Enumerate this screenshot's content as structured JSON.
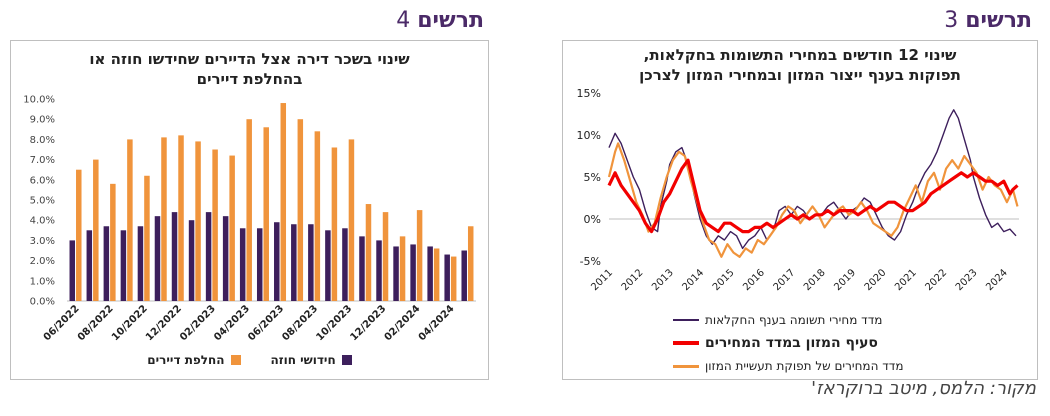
{
  "fig3": {
    "word": "תרשים",
    "number": "3"
  },
  "fig4": {
    "word": "תרשים",
    "number": "4"
  },
  "source": "מקור: הלמס, מיטב ברוקראז'",
  "colors": {
    "title": "#4b2a68",
    "purple": "#3d1f5c",
    "orange": "#f0943c",
    "red": "#f20000"
  },
  "chart_data": [
    {
      "type": "line",
      "title_line1": "שינוי 12 חודשים במחירי התשומות בחקלאות,",
      "title_line2": "תפוקות בענף ייצור המזון ובמחירי המזון לצרכן",
      "yticks": [
        "15%",
        "10%",
        "5%",
        "0%",
        "-5%"
      ],
      "ylim": [
        -5,
        15
      ],
      "xticks": [
        "2011",
        "2012",
        "2013",
        "2014",
        "2015",
        "2016",
        "2017",
        "2018",
        "2019",
        "2020",
        "2021",
        "2022",
        "2023",
        "2024"
      ],
      "xlim": [
        2011,
        2024.5
      ],
      "series": [
        {
          "name": "מדד מחירי תשומה בענף החקלאות",
          "color": "#3d1f5c",
          "points": [
            [
              2011.0,
              8.5
            ],
            [
              2011.2,
              10.2
            ],
            [
              2011.4,
              9.0
            ],
            [
              2011.6,
              7.0
            ],
            [
              2011.8,
              5.0
            ],
            [
              2012.0,
              3.5
            ],
            [
              2012.2,
              1.0
            ],
            [
              2012.4,
              -1.0
            ],
            [
              2012.6,
              -1.5
            ],
            [
              2012.7,
              1.5
            ],
            [
              2012.9,
              4.5
            ],
            [
              2013.0,
              6.5
            ],
            [
              2013.2,
              8.0
            ],
            [
              2013.4,
              8.5
            ],
            [
              2013.6,
              6.5
            ],
            [
              2013.8,
              3.0
            ],
            [
              2014.0,
              0.0
            ],
            [
              2014.2,
              -2.0
            ],
            [
              2014.4,
              -3.0
            ],
            [
              2014.6,
              -2.0
            ],
            [
              2014.8,
              -2.5
            ],
            [
              2015.0,
              -1.5
            ],
            [
              2015.2,
              -2.0
            ],
            [
              2015.4,
              -3.5
            ],
            [
              2015.6,
              -2.5
            ],
            [
              2015.8,
              -2.0
            ],
            [
              2016.0,
              -1.0
            ],
            [
              2016.2,
              -2.5
            ],
            [
              2016.4,
              -1.5
            ],
            [
              2016.6,
              1.0
            ],
            [
              2016.8,
              1.5
            ],
            [
              2017.0,
              0.5
            ],
            [
              2017.2,
              1.5
            ],
            [
              2017.4,
              1.0
            ],
            [
              2017.6,
              0.0
            ],
            [
              2017.8,
              0.5
            ],
            [
              2018.0,
              0.5
            ],
            [
              2018.2,
              1.5
            ],
            [
              2018.4,
              2.0
            ],
            [
              2018.6,
              1.0
            ],
            [
              2018.8,
              0.0
            ],
            [
              2019.0,
              1.0
            ],
            [
              2019.2,
              1.5
            ],
            [
              2019.4,
              2.5
            ],
            [
              2019.6,
              2.0
            ],
            [
              2019.8,
              0.5
            ],
            [
              2020.0,
              -1.0
            ],
            [
              2020.2,
              -2.0
            ],
            [
              2020.4,
              -2.5
            ],
            [
              2020.6,
              -1.5
            ],
            [
              2020.8,
              0.5
            ],
            [
              2021.0,
              2.0
            ],
            [
              2021.2,
              4.0
            ],
            [
              2021.4,
              5.5
            ],
            [
              2021.6,
              6.5
            ],
            [
              2021.8,
              8.0
            ],
            [
              2022.0,
              10.0
            ],
            [
              2022.2,
              12.0
            ],
            [
              2022.35,
              13.0
            ],
            [
              2022.5,
              12.0
            ],
            [
              2022.7,
              9.5
            ],
            [
              2022.9,
              7.0
            ],
            [
              2023.0,
              5.0
            ],
            [
              2023.2,
              2.5
            ],
            [
              2023.4,
              0.5
            ],
            [
              2023.6,
              -1.0
            ],
            [
              2023.8,
              -0.5
            ],
            [
              2024.0,
              -1.5
            ],
            [
              2024.2,
              -1.2
            ],
            [
              2024.4,
              -2.0
            ]
          ]
        },
        {
          "name": "סעיף המזון במדד המחירים",
          "color": "#f20000",
          "points": [
            [
              2011.0,
              4.0
            ],
            [
              2011.2,
              5.5
            ],
            [
              2011.4,
              4.0
            ],
            [
              2011.6,
              3.0
            ],
            [
              2011.8,
              2.0
            ],
            [
              2012.0,
              1.0
            ],
            [
              2012.2,
              -0.5
            ],
            [
              2012.4,
              -1.5
            ],
            [
              2012.6,
              0.0
            ],
            [
              2012.8,
              2.0
            ],
            [
              2013.0,
              3.0
            ],
            [
              2013.2,
              4.5
            ],
            [
              2013.4,
              6.0
            ],
            [
              2013.6,
              7.0
            ],
            [
              2013.8,
              4.0
            ],
            [
              2014.0,
              1.0
            ],
            [
              2014.2,
              -0.5
            ],
            [
              2014.4,
              -1.0
            ],
            [
              2014.6,
              -1.5
            ],
            [
              2014.8,
              -0.5
            ],
            [
              2015.0,
              -0.5
            ],
            [
              2015.2,
              -1.0
            ],
            [
              2015.4,
              -1.5
            ],
            [
              2015.6,
              -1.5
            ],
            [
              2015.8,
              -1.0
            ],
            [
              2016.0,
              -1.0
            ],
            [
              2016.2,
              -0.5
            ],
            [
              2016.4,
              -1.0
            ],
            [
              2016.6,
              -0.5
            ],
            [
              2016.8,
              0.0
            ],
            [
              2017.0,
              0.5
            ],
            [
              2017.2,
              0.0
            ],
            [
              2017.4,
              0.5
            ],
            [
              2017.6,
              0.0
            ],
            [
              2017.8,
              0.5
            ],
            [
              2018.0,
              0.5
            ],
            [
              2018.2,
              1.0
            ],
            [
              2018.4,
              0.5
            ],
            [
              2018.6,
              1.0
            ],
            [
              2018.8,
              1.0
            ],
            [
              2019.0,
              1.0
            ],
            [
              2019.2,
              0.5
            ],
            [
              2019.4,
              1.0
            ],
            [
              2019.6,
              1.5
            ],
            [
              2019.8,
              1.0
            ],
            [
              2020.0,
              1.5
            ],
            [
              2020.2,
              2.0
            ],
            [
              2020.4,
              2.0
            ],
            [
              2020.6,
              1.5
            ],
            [
              2020.8,
              1.0
            ],
            [
              2021.0,
              1.0
            ],
            [
              2021.2,
              1.5
            ],
            [
              2021.4,
              2.0
            ],
            [
              2021.6,
              3.0
            ],
            [
              2021.8,
              3.5
            ],
            [
              2022.0,
              4.0
            ],
            [
              2022.2,
              4.5
            ],
            [
              2022.4,
              5.0
            ],
            [
              2022.6,
              5.5
            ],
            [
              2022.8,
              5.0
            ],
            [
              2023.0,
              5.5
            ],
            [
              2023.2,
              5.0
            ],
            [
              2023.4,
              4.5
            ],
            [
              2023.6,
              4.5
            ],
            [
              2023.8,
              4.0
            ],
            [
              2024.0,
              4.5
            ],
            [
              2024.2,
              3.0
            ],
            [
              2024.3,
              3.5
            ],
            [
              2024.45,
              4.0
            ]
          ]
        },
        {
          "name": "מדד המחירים של תפוקת תעשיית המזון",
          "color": "#f0943c",
          "points": [
            [
              2011.0,
              5.0
            ],
            [
              2011.2,
              8.0
            ],
            [
              2011.3,
              9.0
            ],
            [
              2011.5,
              7.0
            ],
            [
              2011.7,
              4.5
            ],
            [
              2011.9,
              2.0
            ],
            [
              2012.1,
              0.5
            ],
            [
              2012.3,
              -1.5
            ],
            [
              2012.5,
              -0.5
            ],
            [
              2012.7,
              2.5
            ],
            [
              2012.9,
              5.0
            ],
            [
              2013.1,
              7.0
            ],
            [
              2013.3,
              8.0
            ],
            [
              2013.5,
              7.5
            ],
            [
              2013.7,
              4.5
            ],
            [
              2013.9,
              2.0
            ],
            [
              2014.1,
              -0.5
            ],
            [
              2014.3,
              -2.5
            ],
            [
              2014.5,
              -3.0
            ],
            [
              2014.7,
              -4.5
            ],
            [
              2014.9,
              -3.0
            ],
            [
              2015.1,
              -4.0
            ],
            [
              2015.3,
              -4.5
            ],
            [
              2015.5,
              -3.5
            ],
            [
              2015.7,
              -4.0
            ],
            [
              2015.9,
              -2.5
            ],
            [
              2016.1,
              -3.0
            ],
            [
              2016.3,
              -2.0
            ],
            [
              2016.5,
              -1.0
            ],
            [
              2016.7,
              0.5
            ],
            [
              2016.9,
              1.5
            ],
            [
              2017.1,
              1.0
            ],
            [
              2017.3,
              -0.5
            ],
            [
              2017.5,
              0.5
            ],
            [
              2017.7,
              1.5
            ],
            [
              2017.9,
              0.5
            ],
            [
              2018.1,
              -1.0
            ],
            [
              2018.3,
              0.0
            ],
            [
              2018.5,
              1.0
            ],
            [
              2018.7,
              1.5
            ],
            [
              2018.9,
              0.5
            ],
            [
              2019.1,
              1.0
            ],
            [
              2019.3,
              2.0
            ],
            [
              2019.5,
              1.0
            ],
            [
              2019.7,
              -0.5
            ],
            [
              2019.9,
              -1.0
            ],
            [
              2020.1,
              -1.5
            ],
            [
              2020.3,
              -2.0
            ],
            [
              2020.5,
              -1.0
            ],
            [
              2020.7,
              1.0
            ],
            [
              2020.9,
              2.5
            ],
            [
              2021.1,
              4.0
            ],
            [
              2021.3,
              2.0
            ],
            [
              2021.5,
              4.5
            ],
            [
              2021.7,
              5.5
            ],
            [
              2021.9,
              3.5
            ],
            [
              2022.1,
              6.0
            ],
            [
              2022.3,
              7.0
            ],
            [
              2022.5,
              6.0
            ],
            [
              2022.7,
              7.5
            ],
            [
              2022.9,
              6.5
            ],
            [
              2023.1,
              5.5
            ],
            [
              2023.3,
              3.5
            ],
            [
              2023.5,
              5.0
            ],
            [
              2023.7,
              4.0
            ],
            [
              2023.9,
              3.5
            ],
            [
              2024.1,
              2.0
            ],
            [
              2024.3,
              3.5
            ],
            [
              2024.45,
              1.5
            ]
          ]
        }
      ]
    },
    {
      "type": "bar",
      "title_line1": "שינוי בשכר דירה אצל הדיירים שחידשו חוזה או",
      "title_line2": "בהחלפת דיירים",
      "yticks": [
        "10.0%",
        "9.0%",
        "8.0%",
        "7.0%",
        "6.0%",
        "5.0%",
        "4.0%",
        "3.0%",
        "2.0%",
        "1.0%",
        "0.0%"
      ],
      "ylim": [
        0,
        10
      ],
      "categories": [
        "06/2022",
        "07/2022",
        "08/2022",
        "09/2022",
        "10/2022",
        "11/2022",
        "12/2022",
        "01/2023",
        "02/2023",
        "03/2023",
        "04/2023",
        "05/2023",
        "06/2023",
        "07/2023",
        "08/2023",
        "09/2023",
        "10/2023",
        "11/2023",
        "12/2023",
        "01/2024",
        "02/2024",
        "03/2024",
        "04/2024",
        "05/2024"
      ],
      "xticks": [
        "06/2022",
        "08/2022",
        "10/2022",
        "12/2022",
        "02/2023",
        "04/2023",
        "06/2023",
        "08/2023",
        "10/2023",
        "12/2023",
        "02/2024",
        "04/2024"
      ],
      "series": [
        {
          "name": "חידושי חוזה",
          "color": "#3d1f5c",
          "values": [
            3.0,
            3.5,
            3.7,
            3.5,
            3.7,
            4.2,
            4.4,
            4.0,
            4.4,
            4.2,
            3.6,
            3.6,
            3.9,
            3.8,
            3.8,
            3.5,
            3.6,
            3.2,
            3.0,
            2.7,
            2.8,
            2.7,
            2.3,
            2.5
          ]
        },
        {
          "name": "החלפת דיירים",
          "color": "#f0943c",
          "values": [
            6.5,
            7.0,
            5.8,
            8.0,
            6.2,
            8.1,
            8.2,
            7.9,
            7.5,
            7.2,
            9.0,
            8.6,
            9.8,
            9.0,
            8.4,
            7.6,
            8.0,
            4.8,
            4.4,
            3.2,
            4.5,
            2.6,
            2.2,
            3.7
          ]
        }
      ]
    }
  ]
}
